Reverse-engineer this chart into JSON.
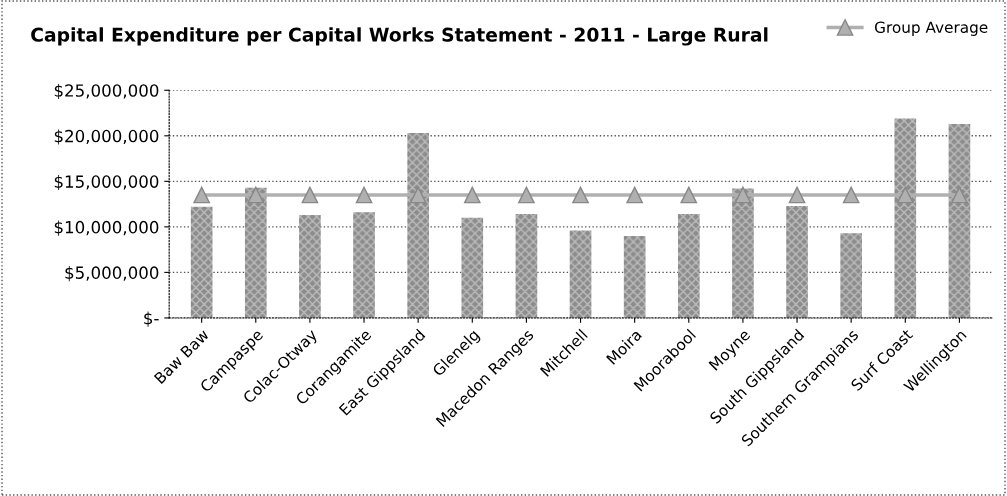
{
  "chart_data": {
    "type": "bar",
    "title": "Capital Expenditure per Capital Works Statement - 2011 - Large Rural",
    "categories": [
      "Baw Baw",
      "Campaspe",
      "Colac-Otway",
      "Corangamite",
      "East Gippsland",
      "Glenelg",
      "Macedon Ranges",
      "Mitchell",
      "Moira",
      "Moorabool",
      "Moyne",
      "South Gippsland",
      "Southern Grampians",
      "Surf Coast",
      "Wellington"
    ],
    "series": [
      {
        "color": "#8c8c8c",
        "values": [
          12200000,
          14300000,
          11300000,
          11600000,
          20300000,
          11000000,
          11400000,
          9600000,
          9000000,
          11400000,
          14200000,
          12300000,
          9300000,
          21900000,
          21300000
        ]
      },
      {
        "name": "Group Average",
        "type": "line",
        "color": "#b0b0b0",
        "marker": "triangle",
        "values": [
          13500000,
          13500000,
          13500000,
          13500000,
          13500000,
          13500000,
          13500000,
          13500000,
          13500000,
          13500000,
          13500000,
          13500000,
          13500000,
          13500000,
          13500000
        ]
      }
    ],
    "ylim": [
      0,
      25000000
    ],
    "yticks": [
      {
        "value": 0,
        "label": "$-"
      },
      {
        "value": 5000000,
        "label": "$5,000,000"
      },
      {
        "value": 10000000,
        "label": "$10,000,000"
      },
      {
        "value": 15000000,
        "label": "$15,000,000"
      },
      {
        "value": 20000000,
        "label": "$20,000,000"
      },
      {
        "value": 25000000,
        "label": "$25,000,000"
      }
    ],
    "grid": "y",
    "legend": "top right"
  }
}
